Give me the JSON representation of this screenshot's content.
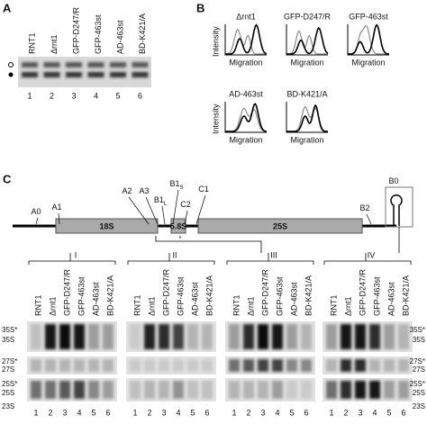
{
  "panel_a": {
    "label": "A",
    "lanes": [
      "RNT1",
      "Δrnt1",
      "GFP-D247/R",
      "GFP-463st",
      "AD-463st",
      "BD-K421/A"
    ],
    "lane_numbers": [
      "1",
      "2",
      "3",
      "4",
      "5",
      "6"
    ]
  },
  "panel_b": {
    "label": "B",
    "plots": [
      "Δrnt1",
      "GFP-D247/R",
      "GFP-463st",
      "AD-463st",
      "BD-K421/A"
    ],
    "y_label": "Intensity",
    "x_label": "Migration"
  },
  "panel_c": {
    "label": "C",
    "sites": [
      {
        "label": "A0"
      },
      {
        "label": "A1"
      },
      {
        "label": "A2"
      },
      {
        "label": "A3"
      },
      {
        "label": "B1",
        "sub": "L"
      },
      {
        "label": "B1",
        "sub": "S"
      },
      {
        "label": "C2"
      },
      {
        "label": "C1"
      },
      {
        "label": "B2"
      },
      {
        "label": "B0"
      }
    ],
    "regions": [
      "18S",
      "5.8S",
      "25S"
    ],
    "fragments": [
      "I",
      "II",
      "III",
      "IV"
    ],
    "lanes": [
      "RNT1",
      "Δrnt1",
      "GFP-D247/R",
      "GFP-463st",
      "AD-463st",
      "BD-K421/A"
    ],
    "lane_numbers": [
      "1",
      "2",
      "3",
      "4",
      "5",
      "6"
    ],
    "band_labels": [
      "35S*",
      "35S",
      "27S*",
      "27S",
      "25S*",
      "25S",
      "23S"
    ]
  }
}
